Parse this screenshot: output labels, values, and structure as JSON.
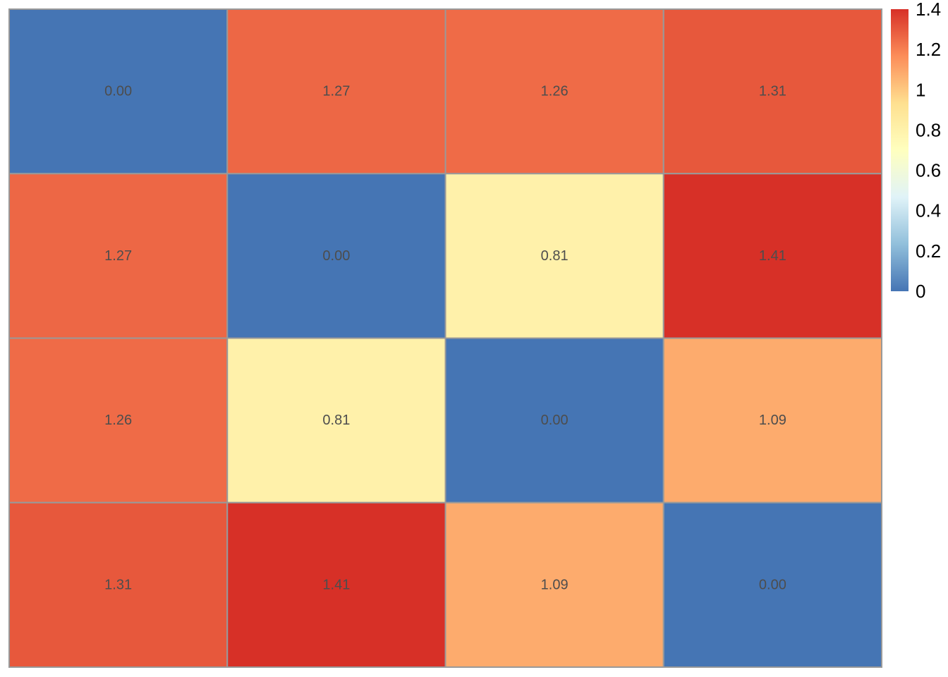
{
  "chart_data": {
    "type": "heatmap",
    "title": "",
    "xlabel": "",
    "ylabel": "",
    "rows": 4,
    "cols": 4,
    "values": [
      [
        0.0,
        1.27,
        1.26,
        1.31
      ],
      [
        1.27,
        0.0,
        0.81,
        1.41
      ],
      [
        1.26,
        0.81,
        0.0,
        1.09
      ],
      [
        1.31,
        1.41,
        1.09,
        0.0
      ]
    ],
    "labels": [
      [
        "0.00",
        "1.27",
        "1.26",
        "1.31"
      ],
      [
        "1.27",
        "0.00",
        "0.81",
        "1.41"
      ],
      [
        "1.26",
        "0.81",
        "0.00",
        "1.09"
      ],
      [
        "1.31",
        "1.41",
        "1.09",
        "0.00"
      ]
    ],
    "color_range": [
      0,
      1.41
    ],
    "colorscale": [
      "#4575B4",
      "#91BFDB",
      "#E0F3F8",
      "#FFFFBF",
      "#FEE090",
      "#FC8D59",
      "#D73027"
    ],
    "cell_border_color": "#999999",
    "legend": {
      "position": "right",
      "ticks": [
        {
          "value": 0,
          "label": "0"
        },
        {
          "value": 0.2,
          "label": "0.2"
        },
        {
          "value": 0.4,
          "label": "0.4"
        },
        {
          "value": 0.6,
          "label": "0.6"
        },
        {
          "value": 0.8,
          "label": "0.8"
        },
        {
          "value": 1.0,
          "label": "1"
        },
        {
          "value": 1.2,
          "label": "1.2"
        },
        {
          "value": 1.4,
          "label": "1.4"
        }
      ]
    }
  }
}
